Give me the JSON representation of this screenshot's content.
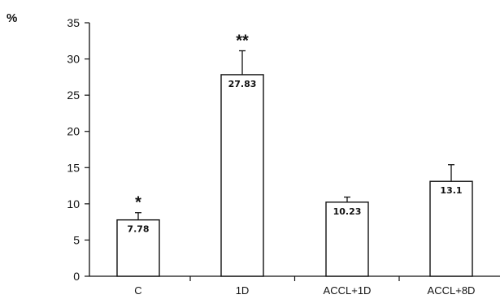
{
  "chart_data": {
    "type": "bar",
    "title": "",
    "xlabel": "",
    "ylabel": "%",
    "ylim": [
      0,
      35
    ],
    "yticks": [
      0,
      5,
      10,
      15,
      20,
      25,
      30,
      35
    ],
    "categories": [
      "C",
      "1D",
      "ACCL+1D",
      "ACCL+8D"
    ],
    "values": [
      7.78,
      27.83,
      10.23,
      13.1
    ],
    "value_labels": [
      "7.78",
      "27.83",
      "10.23",
      "13.1"
    ],
    "error_upper": [
      1.0,
      3.3,
      0.7,
      2.3
    ],
    "significance": [
      "*",
      "**",
      "",
      ""
    ],
    "grid": false,
    "legend": "none",
    "colors": {
      "bar_fill": "#ffffff",
      "bar_stroke": "#111111",
      "axis": "#111111"
    }
  }
}
